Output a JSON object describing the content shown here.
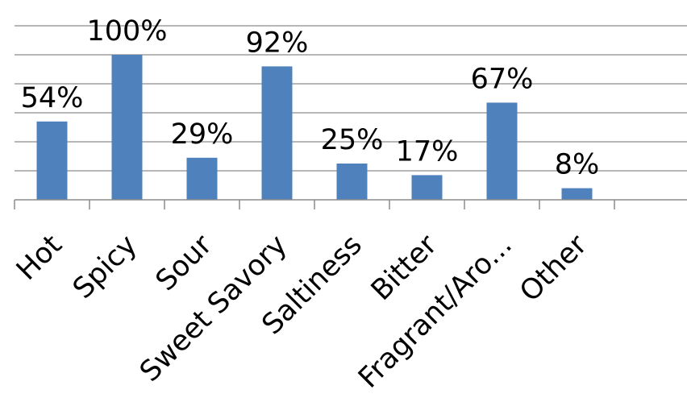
{
  "chart_data": {
    "type": "bar",
    "categories": [
      "Hot",
      "Spicy",
      "Sour",
      "Sweet Savory",
      "Saltiness",
      "Bitter",
      "Fragrant/Aro...",
      "Other"
    ],
    "values": [
      54,
      100,
      29,
      92,
      25,
      17,
      67,
      8
    ],
    "data_labels": [
      "54%",
      "100%",
      "29%",
      "92%",
      "25%",
      "17%",
      "67%",
      "8%"
    ],
    "ylim": [
      0,
      120
    ],
    "grid": true,
    "legend": "none",
    "colors": {
      "bar": "#4f81bd",
      "grid": "#8c8c8c",
      "axis": "#8c8c8c",
      "text": "#000000"
    }
  }
}
